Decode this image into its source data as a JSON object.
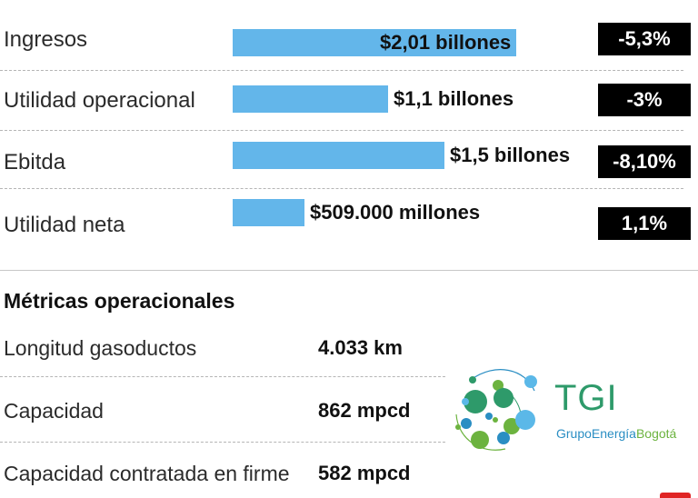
{
  "chart_data": {
    "type": "bar",
    "categories": [
      "Ingresos",
      "Utilidad operacional",
      "Ebitda",
      "Utilidad neta"
    ],
    "values": [
      2.01,
      1.1,
      1.5,
      0.509
    ],
    "value_labels": [
      "$2,01 billones",
      "$1,1 billones",
      "$1,5 billones",
      "$509.000 millones"
    ],
    "changes": [
      "-5,3%",
      "-3%",
      "-8,10%",
      "1,1%"
    ],
    "bar_color": "#63b6ea",
    "change_bg_color": "#000000",
    "xlim": [
      0,
      2.01
    ]
  },
  "metrics": {
    "title": "Métricas operacionales",
    "items": [
      {
        "label": "Longitud gasoductos",
        "value": "4.033 km"
      },
      {
        "label": "Capacidad",
        "value": "862 mpcd"
      },
      {
        "label": "Capacidad contratada en firme",
        "value": "582 mpcd"
      }
    ]
  },
  "logo": {
    "icon": "tgi-bubbles-logo-icon",
    "name": "TGI",
    "subtitle_part1": "Grupo",
    "subtitle_part2": "Energía",
    "subtitle_part3": "Bogotá",
    "colors": {
      "green": "#2e9a6a",
      "blue": "#2a8ec3",
      "lime": "#6cb33f"
    }
  }
}
